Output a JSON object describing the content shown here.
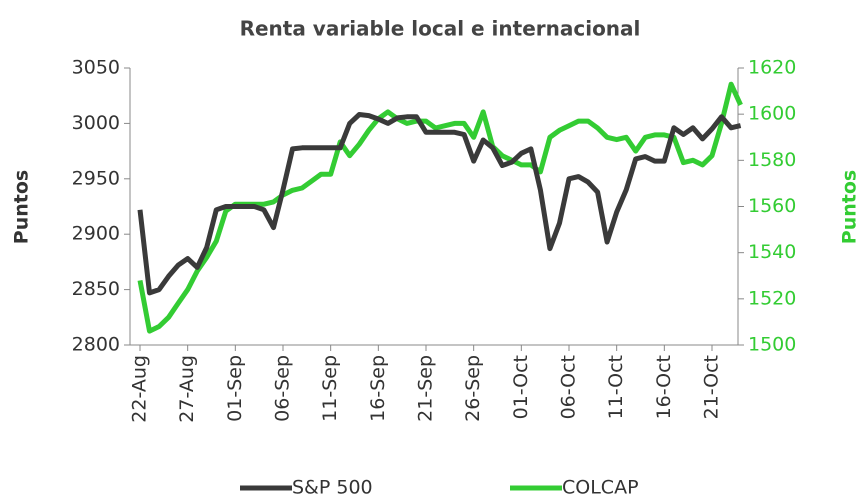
{
  "chart_data": {
    "type": "line",
    "title": "Renta variable local e internacional",
    "ylabel": "Puntos",
    "y2label": "Puntos",
    "categories": [
      "22-Aug",
      null,
      null,
      null,
      null,
      "27-Aug",
      null,
      null,
      null,
      null,
      "01-Sep",
      null,
      null,
      null,
      null,
      "06-Sep",
      null,
      null,
      null,
      null,
      "11-Sep",
      null,
      null,
      null,
      null,
      "16-Sep",
      null,
      null,
      null,
      null,
      "21-Sep",
      null,
      null,
      null,
      null,
      "26-Sep",
      null,
      null,
      null,
      null,
      "01-Oct",
      null,
      null,
      null,
      null,
      "06-Oct",
      null,
      null,
      null,
      null,
      "11-Oct",
      null,
      null,
      null,
      null,
      "16-Oct",
      null,
      null,
      null,
      null,
      "21-Oct",
      null,
      null,
      null
    ],
    "series": [
      {
        "name": "S&P 500",
        "color": "#3a3a3a",
        "axis": "y",
        "values": [
          2922,
          2847,
          2850,
          2862,
          2872,
          2878,
          2870,
          2888,
          2922,
          2925,
          2925,
          2925,
          2925,
          2922,
          2906,
          2940,
          2977,
          2978,
          2978,
          2978,
          2978,
          2978,
          3000,
          3008,
          3007,
          3004,
          3000,
          3005,
          3006,
          3006,
          2992,
          2992,
          2992,
          2992,
          2990,
          2966,
          2985,
          2978,
          2962,
          2965,
          2973,
          2977,
          2940,
          2887,
          2910,
          2950,
          2952,
          2947,
          2938,
          2893,
          2920,
          2940,
          2968,
          2970,
          2966,
          2966,
          2996,
          2990,
          2996,
          2986,
          2995,
          3006,
          2996,
          2998
        ]
      },
      {
        "name": "COLCAP",
        "color": "#33cc33",
        "axis": "y2",
        "values": [
          1528,
          1506,
          1508,
          1512,
          1518,
          1524,
          1532,
          1538,
          1545,
          1558,
          1561,
          1561,
          1561,
          1561,
          1562,
          1565,
          1567,
          1568,
          1571,
          1574,
          1574,
          1588,
          1582,
          1587,
          1593,
          1598,
          1601,
          1598,
          1596,
          1597,
          1597,
          1594,
          1595,
          1596,
          1596,
          1590,
          1601,
          1586,
          1582,
          1580,
          1578,
          1578,
          1575,
          1590,
          1593,
          1595,
          1597,
          1597,
          1594,
          1590,
          1589,
          1590,
          1584,
          1590,
          1591,
          1591,
          1590,
          1579,
          1580,
          1578,
          1582,
          1596,
          1613,
          1604
        ]
      }
    ],
    "ylim": [
      2800,
      3050
    ],
    "yticks": [
      2800,
      2850,
      2900,
      2950,
      3000,
      3050
    ],
    "y2lim": [
      1500,
      1620
    ],
    "y2ticks": [
      1500,
      1520,
      1540,
      1560,
      1580,
      1600,
      1620
    ],
    "grid": false,
    "legend": "bottom"
  }
}
